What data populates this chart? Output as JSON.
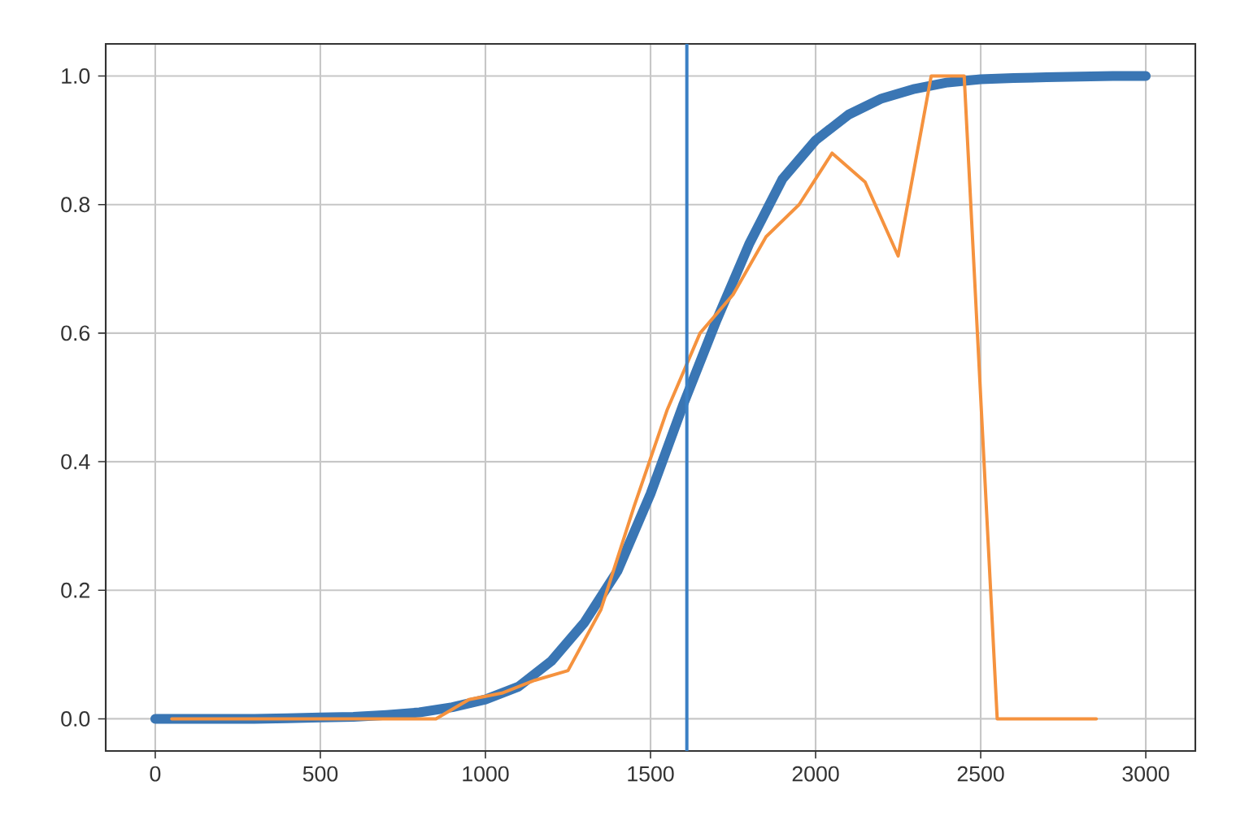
{
  "chart_data": {
    "type": "line",
    "x": [
      0,
      100,
      200,
      300,
      400,
      500,
      600,
      700,
      800,
      900,
      1000,
      1100,
      1200,
      1300,
      1400,
      1500,
      1600,
      1700,
      1800,
      1900,
      2000,
      2100,
      2200,
      2300,
      2400,
      2500,
      2600,
      2700,
      2800,
      2900,
      3000
    ],
    "series": [
      {
        "color": "#3a76b4",
        "values": [
          0,
          0,
          0,
          0,
          0.001,
          0.002,
          0.003,
          0.006,
          0.01,
          0.018,
          0.03,
          0.05,
          0.09,
          0.15,
          0.23,
          0.35,
          0.49,
          0.62,
          0.74,
          0.84,
          0.9,
          0.94,
          0.965,
          0.98,
          0.99,
          0.995,
          0.997,
          0.998,
          0.999,
          1.0,
          1.0
        ]
      },
      {
        "color": "#f5923e",
        "x": [
          50,
          150,
          250,
          350,
          450,
          550,
          650,
          750,
          850,
          950,
          1050,
          1150,
          1250,
          1350,
          1450,
          1550,
          1650,
          1750,
          1850,
          1950,
          2050,
          2150,
          2250,
          2350,
          2450,
          2550,
          2650,
          2750,
          2850
        ],
        "values": [
          0,
          0,
          0,
          0,
          0,
          0,
          0,
          0,
          0,
          0.03,
          0.04,
          0.06,
          0.075,
          0.17,
          0.33,
          0.48,
          0.6,
          0.66,
          0.75,
          0.8,
          0.88,
          0.835,
          0.72,
          1.0,
          1.0,
          0,
          0,
          0,
          0
        ]
      }
    ],
    "ref_lines": [
      {
        "axis": "x",
        "value": 1610,
        "color": "#3a7fc4"
      }
    ],
    "xlim": [
      -150,
      3150
    ],
    "ylim": [
      -0.05,
      1.05
    ],
    "xticks": [
      0,
      500,
      1000,
      1500,
      2000,
      2500,
      3000
    ],
    "yticks": [
      {
        "value": 0,
        "label": "0.0"
      },
      {
        "value": 0.2,
        "label": "0.2"
      },
      {
        "value": 0.4,
        "label": "0.4"
      },
      {
        "value": 0.6,
        "label": "0.6"
      },
      {
        "value": 0.8,
        "label": "0.8"
      },
      {
        "value": 1.0,
        "label": "1.0"
      }
    ],
    "grid": true,
    "marker": "none",
    "line_style": "solid"
  }
}
